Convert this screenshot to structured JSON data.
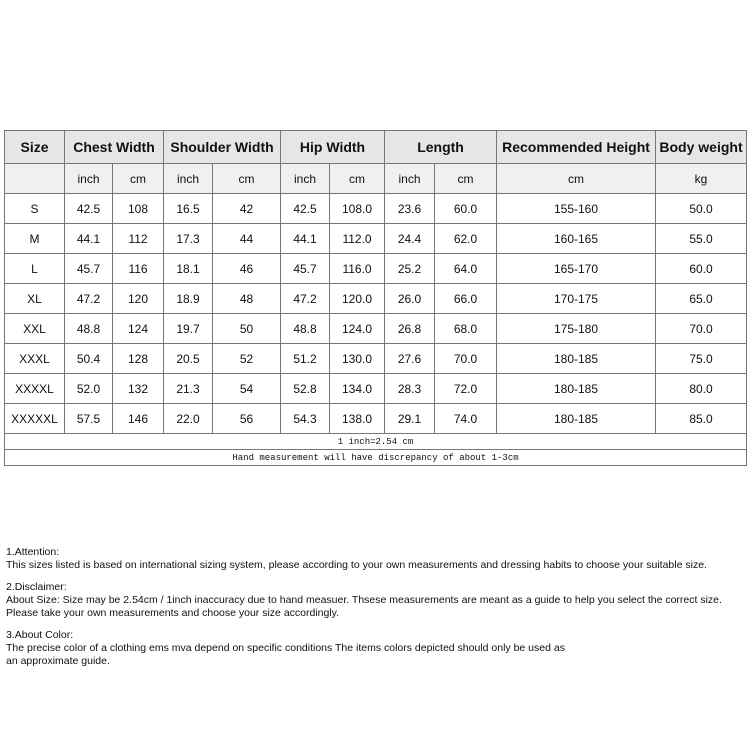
{
  "table": {
    "headers": [
      "Size",
      "Chest Width",
      "Shoulder Width",
      "Hip Width",
      "Length",
      "Recommended Height",
      "Body weight"
    ],
    "subheaders": [
      "",
      "inch",
      "cm",
      "inch",
      "cm",
      "inch",
      "cm",
      "inch",
      "cm",
      "cm",
      "kg"
    ],
    "rows": [
      [
        "S",
        "42.5",
        "108",
        "16.5",
        "42",
        "42.5",
        "108.0",
        "23.6",
        "60.0",
        "155-160",
        "50.0"
      ],
      [
        "M",
        "44.1",
        "112",
        "17.3",
        "44",
        "44.1",
        "112.0",
        "24.4",
        "62.0",
        "160-165",
        "55.0"
      ],
      [
        "L",
        "45.7",
        "116",
        "18.1",
        "46",
        "45.7",
        "116.0",
        "25.2",
        "64.0",
        "165-170",
        "60.0"
      ],
      [
        "XL",
        "47.2",
        "120",
        "18.9",
        "48",
        "47.2",
        "120.0",
        "26.0",
        "66.0",
        "170-175",
        "65.0"
      ],
      [
        "XXL",
        "48.8",
        "124",
        "19.7",
        "50",
        "48.8",
        "124.0",
        "26.8",
        "68.0",
        "175-180",
        "70.0"
      ],
      [
        "XXXL",
        "50.4",
        "128",
        "20.5",
        "52",
        "51.2",
        "130.0",
        "27.6",
        "70.0",
        "180-185",
        "75.0"
      ],
      [
        "XXXXL",
        "52.0",
        "132",
        "21.3",
        "54",
        "52.8",
        "134.0",
        "28.3",
        "72.0",
        "180-185",
        "80.0"
      ],
      [
        "XXXXXL",
        "57.5",
        "146",
        "22.0",
        "56",
        "54.3",
        "138.0",
        "29.1",
        "74.0",
        "180-185",
        "85.0"
      ]
    ],
    "note1": "1 inch=2.54 cm",
    "note2": "Hand measurement will have discrepancy of about 1-3cm"
  },
  "notes": [
    {
      "title": "1.Attention:",
      "lines": [
        "This sizes listed is based on international sizing system, please according to your own measurements and dressing habits to choose your suitable size."
      ]
    },
    {
      "title": "2.Disclaimer:",
      "lines": [
        "About Size: Size may be 2.54cm / 1inch inaccuracy due to hand measuer. Thsese measurements are meant as a guide to help you select the correct size.",
        "Please take your own measurements and choose your size accordingly."
      ]
    },
    {
      "title": "3.About Color:",
      "lines": [
        "The precise color of a clothing ems mva depend on specific conditions The items colors depicted should only be used as",
        "an approximate guide."
      ]
    }
  ]
}
